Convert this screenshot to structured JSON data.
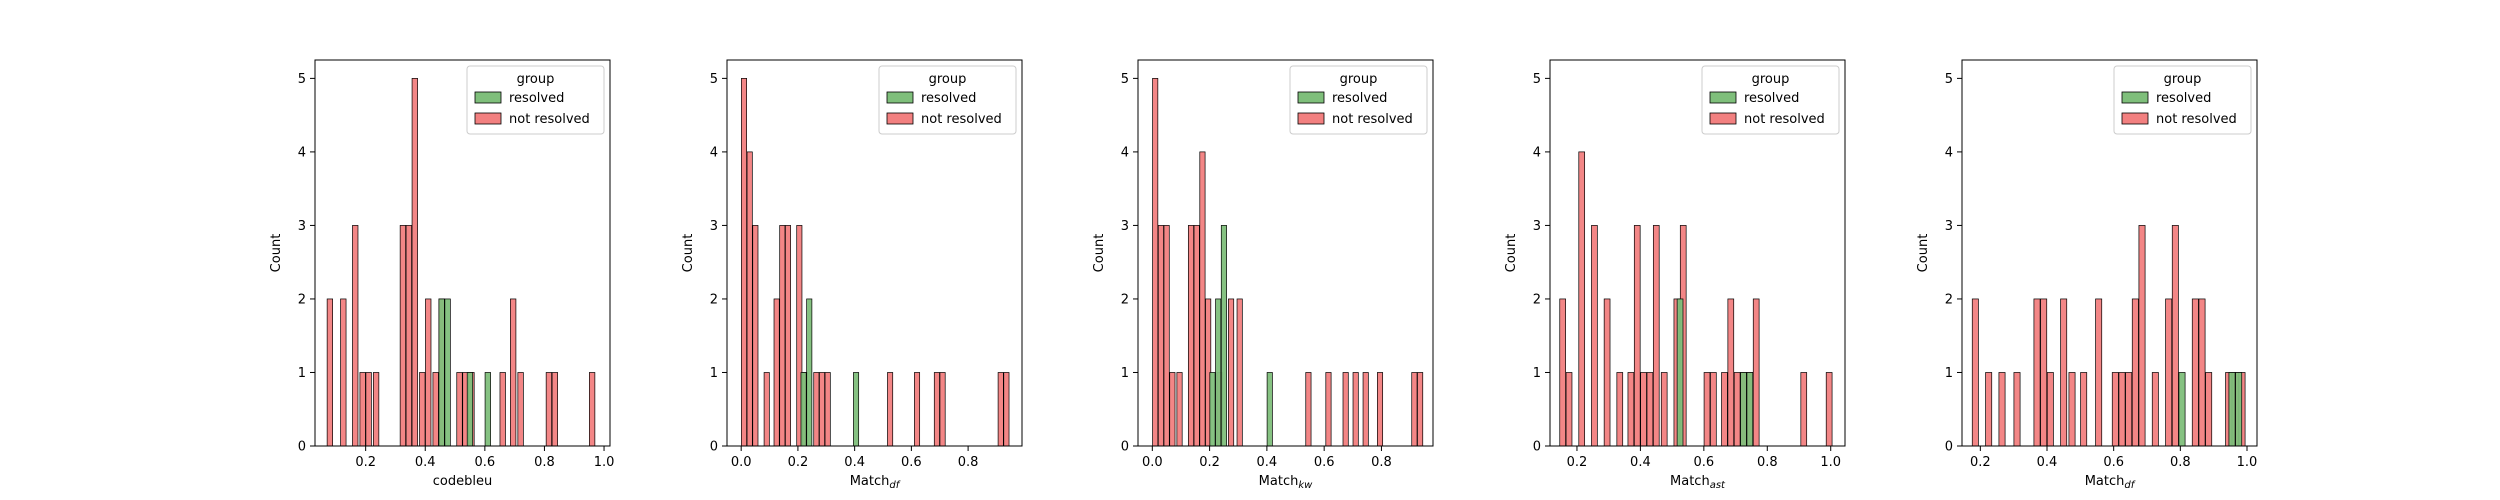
{
  "colors": {
    "resolved": "#7fbf7b",
    "not_resolved": "#f28080",
    "edge": "#000000"
  },
  "chart_data": [
    {
      "type": "bar",
      "xlabel": "codebleu",
      "ylabel": "Count",
      "xlim": [
        0.03,
        1.02
      ],
      "ylim": [
        0,
        5.25
      ],
      "xticks": [
        "0.2",
        "0.4",
        "0.6",
        "0.8",
        "1.0"
      ],
      "xtick_values": [
        0.2,
        0.4,
        0.6,
        0.8,
        1.0
      ],
      "yticks": [
        "0",
        "1",
        "2",
        "3",
        "4",
        "5"
      ],
      "bin_width": 0.0185,
      "legend": {
        "title": "group",
        "entries": [
          "resolved",
          "not resolved"
        ],
        "placement": "top-right"
      },
      "series": [
        {
          "name": "resolved",
          "color": "#7fbf7b",
          "x": [
            0.455,
            0.475,
            0.55,
            0.61
          ],
          "values": [
            2,
            2,
            1,
            1
          ]
        },
        {
          "name": "not resolved",
          "color": "#f28080",
          "x": [
            0.08,
            0.125,
            0.165,
            0.19,
            0.21,
            0.235,
            0.325,
            0.345,
            0.365,
            0.39,
            0.41,
            0.435,
            0.455,
            0.515,
            0.535,
            0.555,
            0.66,
            0.695,
            0.72,
            0.815,
            0.835,
            0.96
          ],
          "values": [
            2,
            2,
            3,
            1,
            1,
            1,
            3,
            3,
            5,
            1,
            2,
            1,
            2,
            1,
            1,
            1,
            1,
            2,
            1,
            1,
            1,
            1
          ]
        }
      ]
    },
    {
      "type": "bar",
      "xlabel": "Match",
      "xlabel_sub": "df",
      "ylabel": "Count",
      "xlim": [
        -0.05,
        0.99
      ],
      "ylim": [
        0,
        5.25
      ],
      "xticks": [
        "0.0",
        "0.2",
        "0.4",
        "0.6",
        "0.8"
      ],
      "xtick_values": [
        0.0,
        0.2,
        0.4,
        0.6,
        0.8
      ],
      "yticks": [
        "0",
        "1",
        "2",
        "3",
        "4",
        "5"
      ],
      "bin_width": 0.0185,
      "legend": {
        "title": "group",
        "entries": [
          "resolved",
          "not resolved"
        ],
        "placement": "top-right"
      },
      "series": [
        {
          "name": "resolved",
          "color": "#7fbf7b",
          "x": [
            0.22,
            0.24,
            0.405
          ],
          "values": [
            1,
            2,
            1
          ]
        },
        {
          "name": "not resolved",
          "color": "#f28080",
          "x": [
            0.01,
            0.03,
            0.05,
            0.09,
            0.125,
            0.145,
            0.165,
            0.205,
            0.225,
            0.265,
            0.285,
            0.305,
            0.525,
            0.62,
            0.69,
            0.71,
            0.915,
            0.935
          ],
          "values": [
            5,
            4,
            3,
            1,
            2,
            3,
            3,
            3,
            1,
            1,
            1,
            1,
            1,
            1,
            1,
            1,
            1,
            1
          ]
        }
      ]
    },
    {
      "type": "bar",
      "xlabel": "Match",
      "xlabel_sub": "kw",
      "ylabel": "Count",
      "xlim": [
        -0.05,
        0.98
      ],
      "ylim": [
        0,
        5.25
      ],
      "xticks": [
        "0.0",
        "0.2",
        "0.4",
        "0.6",
        "0.8"
      ],
      "xtick_values": [
        0.0,
        0.2,
        0.4,
        0.6,
        0.8
      ],
      "yticks": [
        "0",
        "1",
        "2",
        "3",
        "4",
        "5"
      ],
      "bin_width": 0.0185,
      "legend": {
        "title": "group",
        "entries": [
          "resolved",
          "not resolved"
        ],
        "placement": "top-right"
      },
      "series": [
        {
          "name": "resolved",
          "color": "#7fbf7b",
          "x": [
            0.21,
            0.23,
            0.25,
            0.41
          ],
          "values": [
            1,
            2,
            3,
            1
          ]
        },
        {
          "name": "not resolved",
          "color": "#f28080",
          "x": [
            0.01,
            0.03,
            0.05,
            0.07,
            0.095,
            0.135,
            0.155,
            0.175,
            0.195,
            0.235,
            0.275,
            0.305,
            0.545,
            0.615,
            0.675,
            0.71,
            0.745,
            0.795,
            0.915,
            0.935
          ],
          "values": [
            5,
            3,
            3,
            1,
            1,
            3,
            3,
            4,
            2,
            1,
            2,
            2,
            1,
            1,
            1,
            1,
            1,
            1,
            1,
            1
          ]
        }
      ]
    },
    {
      "type": "bar",
      "xlabel": "Match",
      "xlabel_sub": "ast",
      "ylabel": "Count",
      "xlim": [
        0.115,
        1.045
      ],
      "ylim": [
        0,
        5.25
      ],
      "xticks": [
        "0.2",
        "0.4",
        "0.6",
        "0.8",
        "1.0"
      ],
      "xtick_values": [
        0.2,
        0.4,
        0.6,
        0.8,
        1.0
      ],
      "yticks": [
        "0",
        "1",
        "2",
        "3",
        "4",
        "5"
      ],
      "bin_width": 0.0185,
      "legend": {
        "title": "group",
        "entries": [
          "resolved",
          "not resolved"
        ],
        "placement": "top-right"
      },
      "series": [
        {
          "name": "resolved",
          "color": "#7fbf7b",
          "x": [
            0.525,
            0.725,
            0.745
          ],
          "values": [
            2,
            1,
            1
          ]
        },
        {
          "name": "not resolved",
          "color": "#f28080",
          "x": [
            0.155,
            0.175,
            0.215,
            0.255,
            0.295,
            0.335,
            0.37,
            0.39,
            0.41,
            0.43,
            0.45,
            0.475,
            0.515,
            0.535,
            0.61,
            0.63,
            0.665,
            0.685,
            0.705,
            0.725,
            0.745,
            0.765,
            0.915,
            0.995
          ],
          "values": [
            2,
            1,
            4,
            3,
            2,
            1,
            1,
            3,
            1,
            1,
            3,
            1,
            2,
            3,
            1,
            1,
            1,
            2,
            1,
            1,
            1,
            2,
            1,
            1
          ]
        }
      ]
    },
    {
      "type": "bar",
      "xlabel": "Match",
      "xlabel_sub": "df",
      "ylabel": "Count",
      "xlim": [
        0.145,
        1.03
      ],
      "ylim": [
        0,
        5.25
      ],
      "xticks": [
        "0.2",
        "0.4",
        "0.6",
        "0.8",
        "1.0"
      ],
      "xtick_values": [
        0.2,
        0.4,
        0.6,
        0.8,
        1.0
      ],
      "yticks": [
        "0",
        "1",
        "2",
        "3",
        "4",
        "5"
      ],
      "bin_width": 0.0185,
      "legend": {
        "title": "group",
        "entries": [
          "resolved",
          "not resolved"
        ],
        "placement": "top-right"
      },
      "series": [
        {
          "name": "resolved",
          "color": "#7fbf7b",
          "x": [
            0.805,
            0.955,
            0.975
          ],
          "values": [
            1,
            1,
            1
          ]
        },
        {
          "name": "not resolved",
          "color": "#f28080",
          "x": [
            0.185,
            0.225,
            0.265,
            0.31,
            0.37,
            0.39,
            0.41,
            0.45,
            0.475,
            0.51,
            0.555,
            0.605,
            0.625,
            0.645,
            0.665,
            0.685,
            0.725,
            0.765,
            0.785,
            0.845,
            0.865,
            0.885,
            0.945,
            0.965,
            0.985
          ],
          "values": [
            2,
            1,
            1,
            1,
            2,
            2,
            1,
            2,
            1,
            1,
            2,
            1,
            1,
            1,
            2,
            3,
            1,
            2,
            3,
            2,
            2,
            1,
            1,
            1,
            1
          ]
        }
      ]
    }
  ]
}
